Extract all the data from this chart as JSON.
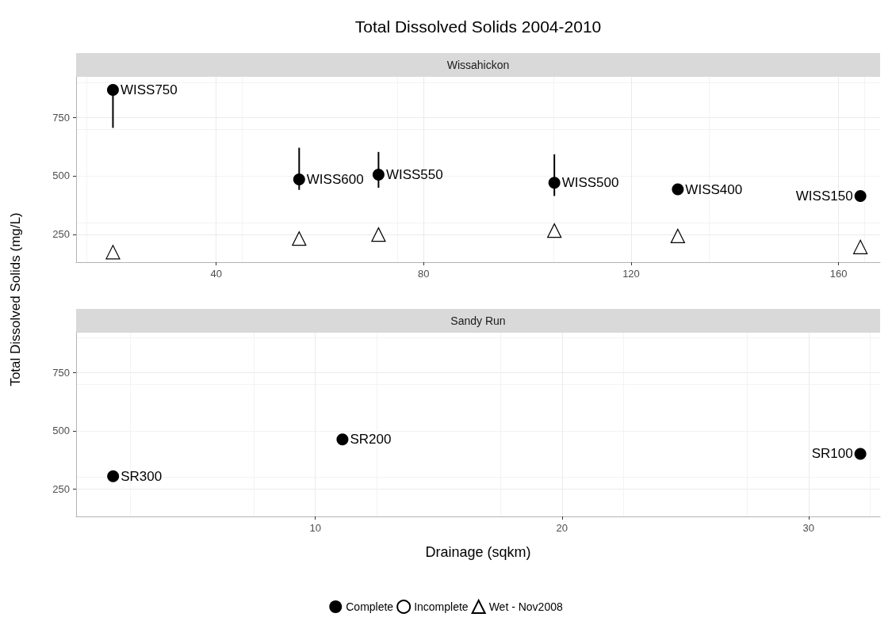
{
  "chart_data": [
    {
      "type": "scatter",
      "title": "Total Dissolved Solids 2004-2010",
      "subtitle": "Wissahickon",
      "ylabel": "Total Dissolved Solids (mg/L)",
      "xlim": [
        13,
        168
      ],
      "xticks": [
        40,
        80,
        120,
        160
      ],
      "ylim": [
        131,
        923
      ],
      "yticks": [
        250,
        500,
        750
      ],
      "grid": true,
      "legend": false,
      "series": [
        {
          "marker": "circle",
          "color": "#000000",
          "x": [
            20.1,
            56.0,
            71.3,
            105.2,
            129.0,
            164.2
          ],
          "values": [
            867,
            485,
            505,
            470,
            442,
            414
          ],
          "value_labels": [
            "WISS750",
            "WISS600",
            "WISS550",
            "WISS500",
            "WISS400",
            "WISS150"
          ],
          "errors": [
            [
              705,
              867
            ],
            [
              440,
              620
            ],
            [
              449,
              602
            ],
            [
              414,
              592
            ],
            null,
            null
          ]
        },
        {
          "marker": "triangle",
          "color": "#ffffff",
          "x": [
            20.1,
            56.0,
            71.3,
            105.2,
            129.0,
            164.2
          ],
          "values": [
            174,
            232,
            249,
            266,
            243,
            196
          ]
        }
      ]
    },
    {
      "type": "scatter",
      "subtitle": "Sandy Run",
      "xlabel": "Drainage (sqkm)",
      "xlim": [
        0.3,
        32.9
      ],
      "xticks": [
        10,
        20,
        30
      ],
      "ylim": [
        131,
        923
      ],
      "yticks": [
        250,
        500,
        750
      ],
      "grid": true,
      "legend": "bottom",
      "series": [
        {
          "name": "Complete",
          "marker": "circle",
          "color": "#000000",
          "x": [
            1.8,
            11.1,
            32.1
          ],
          "values": [
            304,
            463,
            401
          ],
          "value_labels": [
            "SR300",
            "SR200",
            "SR100"
          ],
          "errors": [
            null,
            null,
            [
              388,
              401
            ]
          ]
        },
        {
          "name": "Incomplete",
          "marker": "circle",
          "color": "#ffffff"
        },
        {
          "name": "Wet - Nov2008",
          "marker": "triangle",
          "color": "#ffffff"
        }
      ]
    }
  ]
}
